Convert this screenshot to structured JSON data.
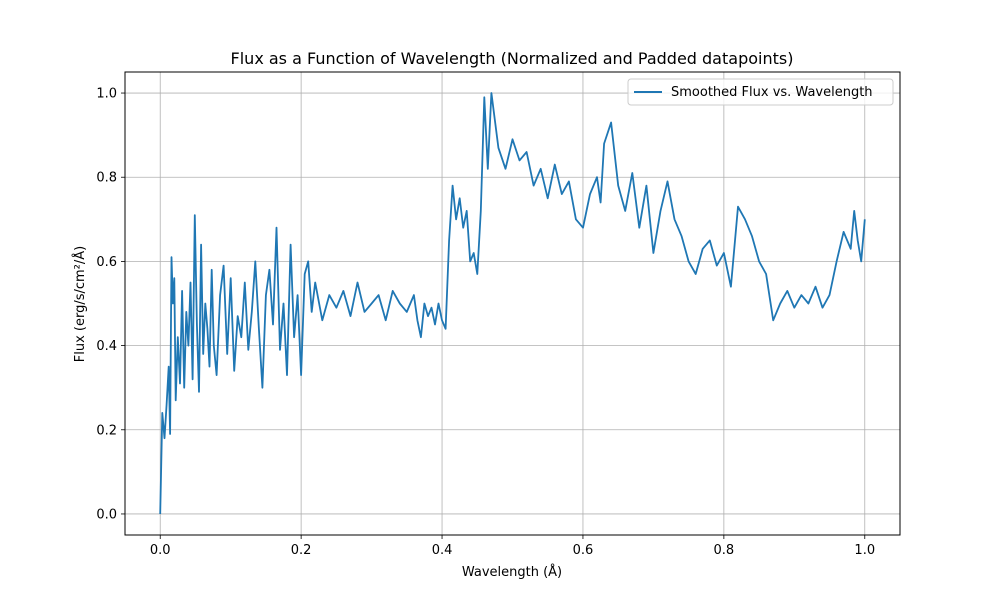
{
  "chart_data": {
    "type": "line",
    "title": "Flux as a Function of Wavelength (Normalized and Padded datapoints)",
    "xlabel": "Wavelength (Å)",
    "ylabel": "Flux (erg/s/cm²/Å)",
    "xlim": [
      -0.05,
      1.05
    ],
    "ylim": [
      -0.05,
      1.05
    ],
    "xticks": [
      0.0,
      0.2,
      0.4,
      0.6,
      0.8,
      1.0
    ],
    "xtick_labels": [
      "0.0",
      "0.2",
      "0.4",
      "0.6",
      "0.8",
      "1.0"
    ],
    "yticks": [
      0.0,
      0.2,
      0.4,
      0.6,
      0.8,
      1.0
    ],
    "ytick_labels": [
      "0.0",
      "0.2",
      "0.4",
      "0.6",
      "0.8",
      "1.0"
    ],
    "grid": true,
    "legend_position": "top-right",
    "color": "#1f77b4",
    "series": [
      {
        "name": "Smoothed Flux vs. Wavelength",
        "x": [
          0.0,
          0.003,
          0.006,
          0.009,
          0.012,
          0.014,
          0.016,
          0.018,
          0.02,
          0.022,
          0.025,
          0.028,
          0.031,
          0.034,
          0.037,
          0.04,
          0.043,
          0.046,
          0.049,
          0.052,
          0.055,
          0.058,
          0.061,
          0.064,
          0.067,
          0.07,
          0.073,
          0.076,
          0.08,
          0.085,
          0.09,
          0.095,
          0.1,
          0.105,
          0.11,
          0.115,
          0.12,
          0.125,
          0.13,
          0.135,
          0.14,
          0.145,
          0.15,
          0.155,
          0.16,
          0.165,
          0.17,
          0.175,
          0.18,
          0.185,
          0.19,
          0.195,
          0.2,
          0.205,
          0.21,
          0.215,
          0.22,
          0.23,
          0.24,
          0.25,
          0.26,
          0.27,
          0.28,
          0.29,
          0.3,
          0.31,
          0.32,
          0.33,
          0.34,
          0.35,
          0.36,
          0.365,
          0.37,
          0.375,
          0.38,
          0.385,
          0.39,
          0.395,
          0.4,
          0.405,
          0.41,
          0.415,
          0.42,
          0.425,
          0.43,
          0.435,
          0.44,
          0.445,
          0.45,
          0.455,
          0.46,
          0.465,
          0.47,
          0.48,
          0.49,
          0.5,
          0.51,
          0.52,
          0.53,
          0.54,
          0.55,
          0.56,
          0.57,
          0.58,
          0.59,
          0.6,
          0.61,
          0.62,
          0.625,
          0.63,
          0.64,
          0.65,
          0.66,
          0.67,
          0.68,
          0.69,
          0.7,
          0.71,
          0.72,
          0.73,
          0.74,
          0.75,
          0.76,
          0.77,
          0.78,
          0.79,
          0.8,
          0.81,
          0.82,
          0.83,
          0.84,
          0.85,
          0.86,
          0.87,
          0.88,
          0.89,
          0.9,
          0.91,
          0.92,
          0.93,
          0.94,
          0.95,
          0.96,
          0.97,
          0.98,
          0.985,
          0.99,
          0.995,
          1.0
        ],
        "y": [
          0.0,
          0.24,
          0.18,
          0.26,
          0.35,
          0.19,
          0.61,
          0.5,
          0.56,
          0.27,
          0.42,
          0.31,
          0.53,
          0.3,
          0.48,
          0.4,
          0.55,
          0.32,
          0.71,
          0.45,
          0.29,
          0.64,
          0.38,
          0.5,
          0.44,
          0.35,
          0.58,
          0.4,
          0.33,
          0.52,
          0.59,
          0.38,
          0.56,
          0.34,
          0.47,
          0.42,
          0.55,
          0.39,
          0.48,
          0.6,
          0.44,
          0.3,
          0.52,
          0.58,
          0.45,
          0.68,
          0.39,
          0.5,
          0.33,
          0.64,
          0.42,
          0.52,
          0.33,
          0.57,
          0.6,
          0.48,
          0.55,
          0.46,
          0.52,
          0.49,
          0.53,
          0.47,
          0.55,
          0.48,
          0.5,
          0.52,
          0.46,
          0.53,
          0.5,
          0.48,
          0.52,
          0.46,
          0.42,
          0.5,
          0.47,
          0.49,
          0.45,
          0.5,
          0.46,
          0.44,
          0.65,
          0.78,
          0.7,
          0.75,
          0.68,
          0.72,
          0.6,
          0.62,
          0.57,
          0.72,
          0.99,
          0.82,
          1.0,
          0.87,
          0.82,
          0.89,
          0.84,
          0.86,
          0.78,
          0.82,
          0.75,
          0.83,
          0.76,
          0.79,
          0.7,
          0.68,
          0.76,
          0.8,
          0.74,
          0.88,
          0.93,
          0.78,
          0.72,
          0.81,
          0.68,
          0.78,
          0.62,
          0.72,
          0.79,
          0.7,
          0.66,
          0.6,
          0.57,
          0.63,
          0.65,
          0.59,
          0.62,
          0.54,
          0.73,
          0.7,
          0.66,
          0.6,
          0.57,
          0.46,
          0.5,
          0.53,
          0.49,
          0.52,
          0.5,
          0.54,
          0.49,
          0.52,
          0.6,
          0.67,
          0.63,
          0.72,
          0.65,
          0.6,
          0.7
        ]
      }
    ]
  }
}
